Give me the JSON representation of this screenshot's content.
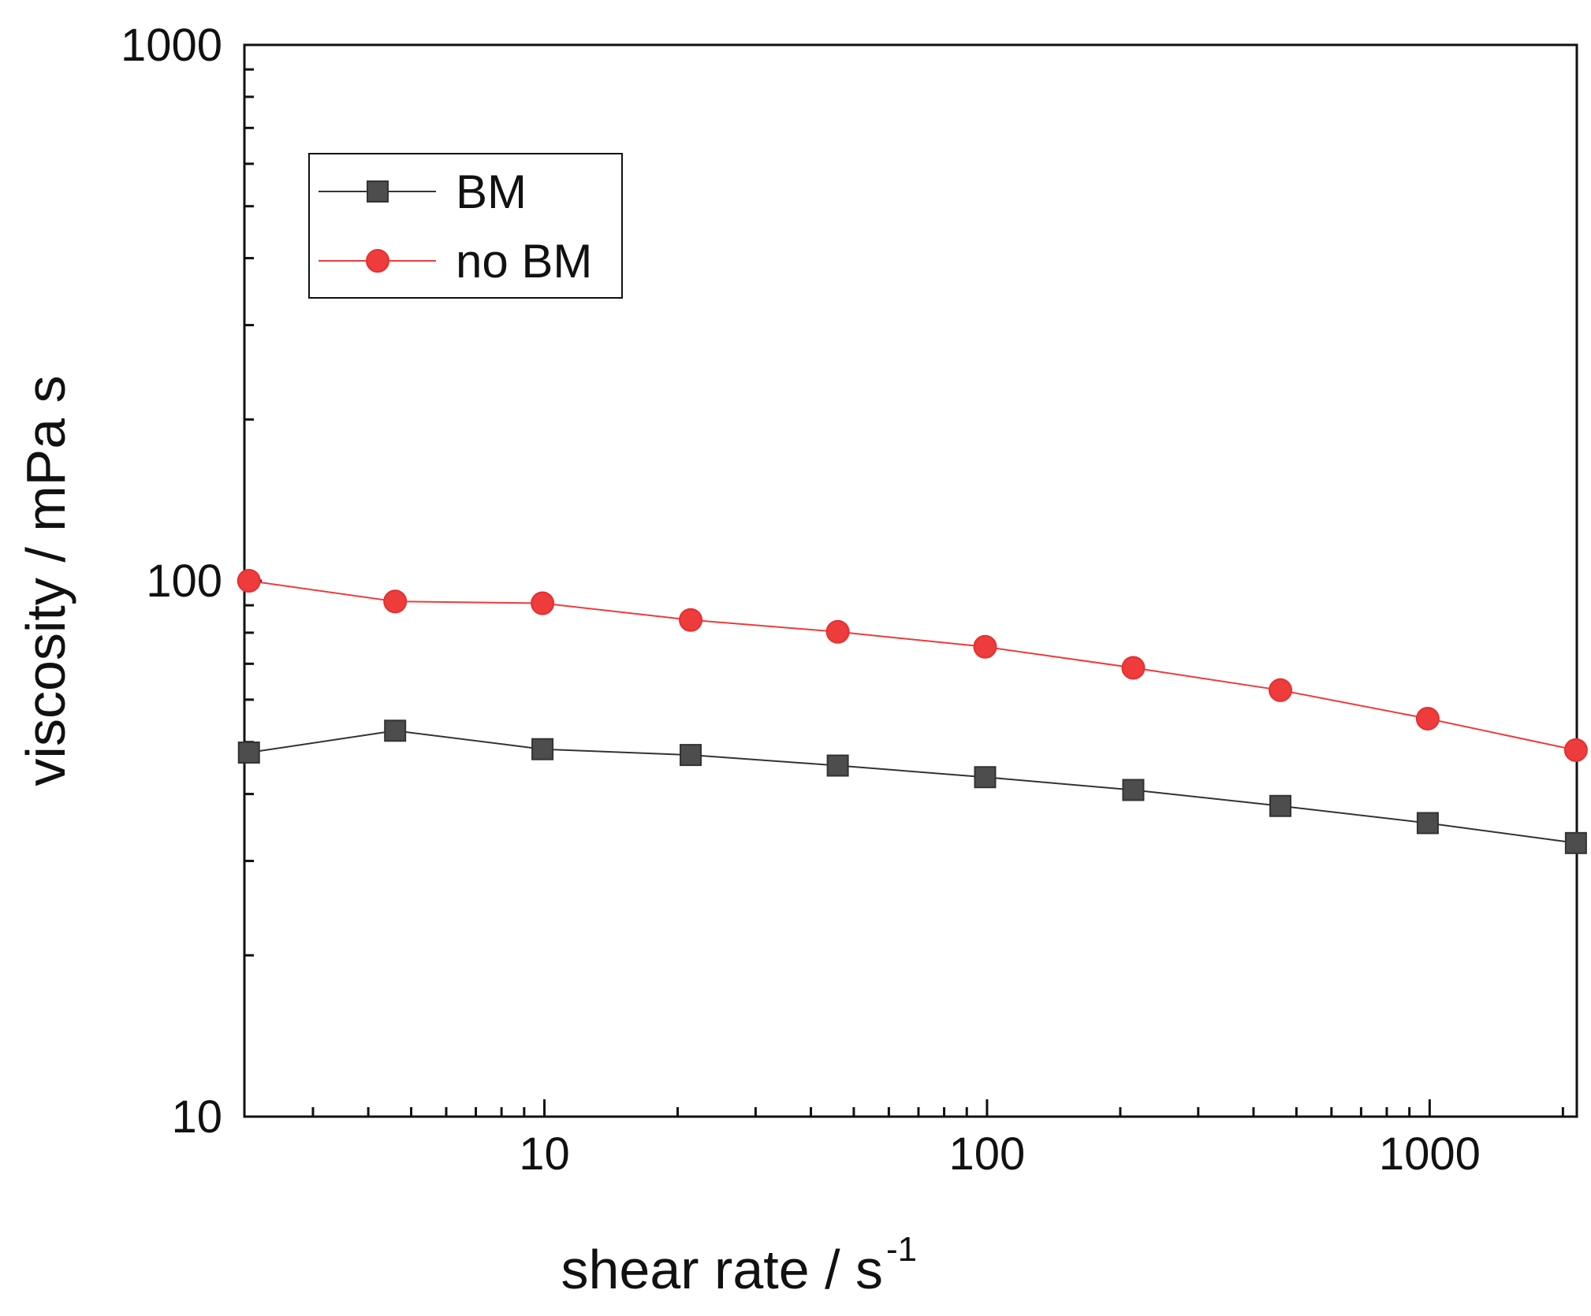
{
  "chart_data": {
    "type": "line",
    "title": "",
    "xlabel": "shear rate / s",
    "xlabel_superscript": "-1",
    "ylabel": "viscosity / mPa s",
    "x_scale": "log",
    "y_scale": "log",
    "xlim": [
      2.1,
      2150
    ],
    "ylim": [
      10,
      1000
    ],
    "x_ticks": [
      "10",
      "100",
      "1000"
    ],
    "y_ticks": [
      "10",
      "100",
      "1000"
    ],
    "grid": false,
    "legend_position": "top-left",
    "x": [
      2.15,
      4.6,
      9.9,
      21.4,
      46,
      99,
      214,
      460,
      990,
      2140
    ],
    "series": [
      {
        "name": "BM",
        "marker": "square",
        "color": "#4d4d4d",
        "line_color": "#333333",
        "values": [
          47.8,
          52.5,
          48.5,
          47.3,
          45.2,
          43.0,
          40.7,
          38.0,
          35.3,
          32.4
        ]
      },
      {
        "name": "no BM",
        "marker": "circle",
        "color": "#ee3b3b",
        "line_color": "#ee3b3b",
        "values": [
          100,
          91.5,
          90.8,
          84.5,
          80.3,
          75.3,
          68.8,
          62.5,
          55.3,
          48.3
        ]
      }
    ]
  }
}
